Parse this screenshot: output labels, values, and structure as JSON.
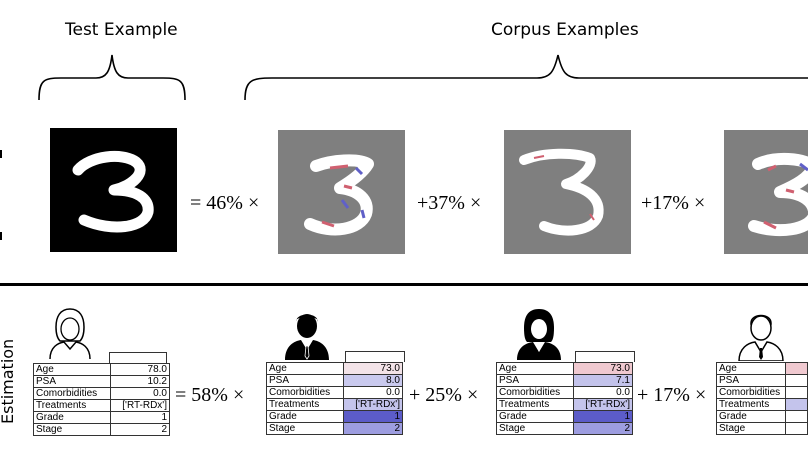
{
  "top": {
    "test_header": "Test Example",
    "corpus_header": "Corpus Examples",
    "coefficients": [
      "= 46% ×",
      "+37% ×",
      "+17% ×"
    ]
  },
  "bottom": {
    "row_label": "Estimation",
    "coefficients": [
      "=  58% ×",
      "+ 25% ×",
      "+ 17% ×"
    ],
    "patients": [
      {
        "icon": "female-patient-outline-icon",
        "rows": [
          {
            "k": "Age",
            "v": "78.0"
          },
          {
            "k": "PSA",
            "v": "10.2"
          },
          {
            "k": "Comorbidities",
            "v": "0.0"
          },
          {
            "k": "Treatments",
            "v": "['RT-RDx']"
          },
          {
            "k": "Grade",
            "v": "1"
          },
          {
            "k": "Stage",
            "v": "2"
          }
        ],
        "colors": [
          "#ffffff",
          "#ffffff",
          "#ffffff",
          "#ffffff",
          "#ffffff",
          "#ffffff"
        ]
      },
      {
        "icon": "male-patient-suit-icon",
        "rows": [
          {
            "k": "Age",
            "v": "73.0"
          },
          {
            "k": "PSA",
            "v": "8.0"
          },
          {
            "k": "Comorbidities",
            "v": "0.0"
          },
          {
            "k": "Treatments",
            "v": "['RT-RDx']"
          },
          {
            "k": "Grade",
            "v": "1"
          },
          {
            "k": "Stage",
            "v": "2"
          }
        ],
        "colors": [
          "#f3e3e8",
          "#c9c9ee",
          "#ffffff",
          "#c4c4ec",
          "#5c5cc8",
          "#9d9de0"
        ]
      },
      {
        "icon": "female-patient-suit-icon",
        "rows": [
          {
            "k": "Age",
            "v": "73.0"
          },
          {
            "k": "PSA",
            "v": "7.1"
          },
          {
            "k": "Comorbidities",
            "v": "0.0"
          },
          {
            "k": "Treatments",
            "v": "['RT-RDx']"
          },
          {
            "k": "Grade",
            "v": "1"
          },
          {
            "k": "Stage",
            "v": "2"
          }
        ],
        "colors": [
          "#f0c9d0",
          "#c3c3eb",
          "#ffffff",
          "#c4c4ec",
          "#5c5cc8",
          "#9d9de0"
        ]
      },
      {
        "icon": "male-patient-outline-icon",
        "rows": [
          {
            "k": "Age",
            "v": ""
          },
          {
            "k": "PSA",
            "v": ""
          },
          {
            "k": "Comorbidities",
            "v": ""
          },
          {
            "k": "Treatments",
            "v": ""
          },
          {
            "k": "Grade",
            "v": ""
          },
          {
            "k": "Stage",
            "v": ""
          }
        ],
        "colors": [
          "#f0c9d0",
          "#ffffff",
          "#ffffff",
          "#c4c4ec",
          "#ffffff",
          "#ffffff"
        ]
      }
    ]
  }
}
